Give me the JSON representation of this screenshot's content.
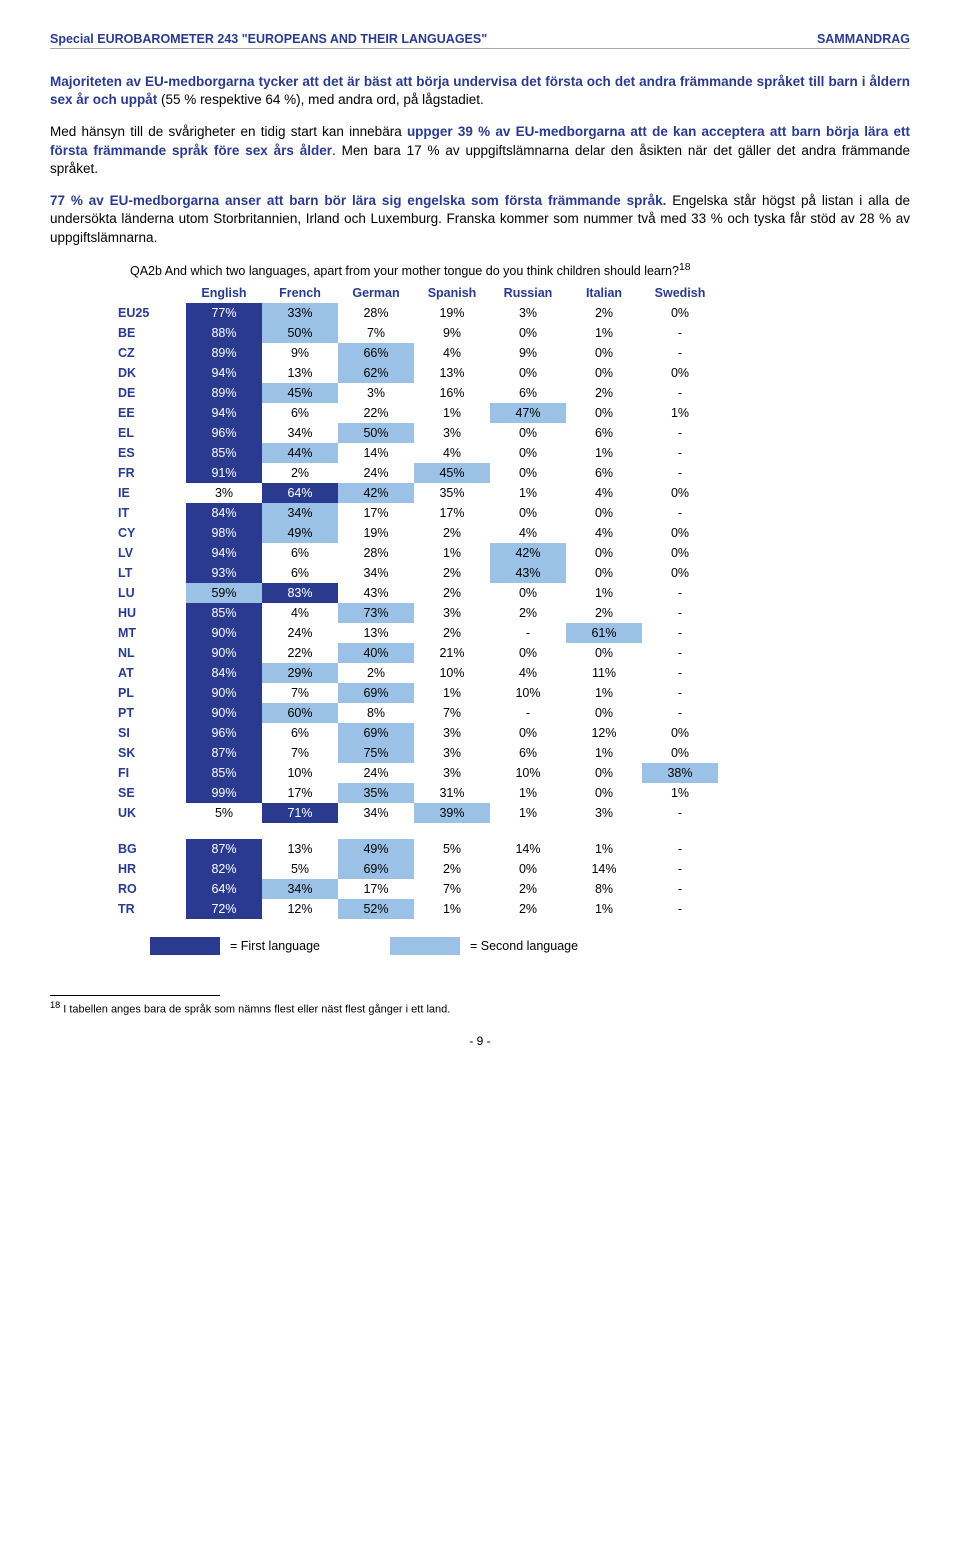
{
  "header": {
    "left": "Special EUROBAROMETER 243 \"EUROPEANS AND THEIR LANGUAGES\"",
    "right": "SAMMANDRAG"
  },
  "paragraphs": {
    "p1_pre": "Majoriteten av EU-medborgarna tycker att det är bäst att börja undervisa det första och det andra främmande språket till barn i åldern sex år och uppåt",
    "p1_post": " (55 % respektive 64 %), med andra ord, på lågstadiet.",
    "p2_pre": "Med hänsyn till de svårigheter en tidig start kan innebära ",
    "p2_bold": "uppger 39 % av EU-medborgarna att de kan acceptera att barn börja lära ett första främmande språk före sex års ålder",
    "p2_post": ". Men bara 17 % av uppgiftslämnarna delar den åsikten när det gäller det andra främmande språket.",
    "p3_bold": "77 % av EU-medborgarna anser att barn bör lära sig engelska som första främmande språk.",
    "p3_post": " Engelska står högst på listan i alla de undersökta länderna utom Storbritannien, Irland och Luxemburg. Franska kommer som nummer två med 33 % och tyska får stöd av 28 % av uppgiftslämnarna."
  },
  "table": {
    "intro": "QA2b And which two languages, apart from your mother tongue do you think children should learn?",
    "intro_sup": "18",
    "columns": [
      "English",
      "French",
      "German",
      "Spanish",
      "Russian",
      "Italian",
      "Swedish"
    ],
    "rows": [
      {
        "label": "EU25",
        "cells": [
          {
            "v": "77%",
            "h": 1
          },
          {
            "v": "33%",
            "h": 2
          },
          {
            "v": "28%",
            "h": 0
          },
          {
            "v": "19%",
            "h": 0
          },
          {
            "v": "3%",
            "h": 0
          },
          {
            "v": "2%",
            "h": 0
          },
          {
            "v": "0%",
            "h": 0
          }
        ]
      },
      {
        "label": "BE",
        "cells": [
          {
            "v": "88%",
            "h": 1
          },
          {
            "v": "50%",
            "h": 2
          },
          {
            "v": "7%",
            "h": 0
          },
          {
            "v": "9%",
            "h": 0
          },
          {
            "v": "0%",
            "h": 0
          },
          {
            "v": "1%",
            "h": 0
          },
          {
            "v": "-",
            "h": 0
          }
        ]
      },
      {
        "label": "CZ",
        "cells": [
          {
            "v": "89%",
            "h": 1
          },
          {
            "v": "9%",
            "h": 0
          },
          {
            "v": "66%",
            "h": 2
          },
          {
            "v": "4%",
            "h": 0
          },
          {
            "v": "9%",
            "h": 0
          },
          {
            "v": "0%",
            "h": 0
          },
          {
            "v": "-",
            "h": 0
          }
        ]
      },
      {
        "label": "DK",
        "cells": [
          {
            "v": "94%",
            "h": 1
          },
          {
            "v": "13%",
            "h": 0
          },
          {
            "v": "62%",
            "h": 2
          },
          {
            "v": "13%",
            "h": 0
          },
          {
            "v": "0%",
            "h": 0
          },
          {
            "v": "0%",
            "h": 0
          },
          {
            "v": "0%",
            "h": 0
          }
        ]
      },
      {
        "label": "DE",
        "cells": [
          {
            "v": "89%",
            "h": 1
          },
          {
            "v": "45%",
            "h": 2
          },
          {
            "v": "3%",
            "h": 0
          },
          {
            "v": "16%",
            "h": 0
          },
          {
            "v": "6%",
            "h": 0
          },
          {
            "v": "2%",
            "h": 0
          },
          {
            "v": "-",
            "h": 0
          }
        ]
      },
      {
        "label": "EE",
        "cells": [
          {
            "v": "94%",
            "h": 1
          },
          {
            "v": "6%",
            "h": 0
          },
          {
            "v": "22%",
            "h": 0
          },
          {
            "v": "1%",
            "h": 0
          },
          {
            "v": "47%",
            "h": 2
          },
          {
            "v": "0%",
            "h": 0
          },
          {
            "v": "1%",
            "h": 0
          }
        ]
      },
      {
        "label": "EL",
        "cells": [
          {
            "v": "96%",
            "h": 1
          },
          {
            "v": "34%",
            "h": 0
          },
          {
            "v": "50%",
            "h": 2
          },
          {
            "v": "3%",
            "h": 0
          },
          {
            "v": "0%",
            "h": 0
          },
          {
            "v": "6%",
            "h": 0
          },
          {
            "v": "-",
            "h": 0
          }
        ]
      },
      {
        "label": "ES",
        "cells": [
          {
            "v": "85%",
            "h": 1
          },
          {
            "v": "44%",
            "h": 2
          },
          {
            "v": "14%",
            "h": 0
          },
          {
            "v": "4%",
            "h": 0
          },
          {
            "v": "0%",
            "h": 0
          },
          {
            "v": "1%",
            "h": 0
          },
          {
            "v": "-",
            "h": 0
          }
        ]
      },
      {
        "label": "FR",
        "cells": [
          {
            "v": "91%",
            "h": 1
          },
          {
            "v": "2%",
            "h": 0
          },
          {
            "v": "24%",
            "h": 0
          },
          {
            "v": "45%",
            "h": 2
          },
          {
            "v": "0%",
            "h": 0
          },
          {
            "v": "6%",
            "h": 0
          },
          {
            "v": "-",
            "h": 0
          }
        ]
      },
      {
        "label": "IE",
        "cells": [
          {
            "v": "3%",
            "h": 0
          },
          {
            "v": "64%",
            "h": 1
          },
          {
            "v": "42%",
            "h": 2
          },
          {
            "v": "35%",
            "h": 0
          },
          {
            "v": "1%",
            "h": 0
          },
          {
            "v": "4%",
            "h": 0
          },
          {
            "v": "0%",
            "h": 0
          }
        ]
      },
      {
        "label": "IT",
        "cells": [
          {
            "v": "84%",
            "h": 1
          },
          {
            "v": "34%",
            "h": 2
          },
          {
            "v": "17%",
            "h": 0
          },
          {
            "v": "17%",
            "h": 0
          },
          {
            "v": "0%",
            "h": 0
          },
          {
            "v": "0%",
            "h": 0
          },
          {
            "v": "-",
            "h": 0
          }
        ]
      },
      {
        "label": "CY",
        "cells": [
          {
            "v": "98%",
            "h": 1
          },
          {
            "v": "49%",
            "h": 2
          },
          {
            "v": "19%",
            "h": 0
          },
          {
            "v": "2%",
            "h": 0
          },
          {
            "v": "4%",
            "h": 0
          },
          {
            "v": "4%",
            "h": 0
          },
          {
            "v": "0%",
            "h": 0
          }
        ]
      },
      {
        "label": "LV",
        "cells": [
          {
            "v": "94%",
            "h": 1
          },
          {
            "v": "6%",
            "h": 0
          },
          {
            "v": "28%",
            "h": 0
          },
          {
            "v": "1%",
            "h": 0
          },
          {
            "v": "42%",
            "h": 2
          },
          {
            "v": "0%",
            "h": 0
          },
          {
            "v": "0%",
            "h": 0
          }
        ]
      },
      {
        "label": "LT",
        "cells": [
          {
            "v": "93%",
            "h": 1
          },
          {
            "v": "6%",
            "h": 0
          },
          {
            "v": "34%",
            "h": 0
          },
          {
            "v": "2%",
            "h": 0
          },
          {
            "v": "43%",
            "h": 2
          },
          {
            "v": "0%",
            "h": 0
          },
          {
            "v": "0%",
            "h": 0
          }
        ]
      },
      {
        "label": "LU",
        "cells": [
          {
            "v": "59%",
            "h": 2
          },
          {
            "v": "83%",
            "h": 1
          },
          {
            "v": "43%",
            "h": 0
          },
          {
            "v": "2%",
            "h": 0
          },
          {
            "v": "0%",
            "h": 0
          },
          {
            "v": "1%",
            "h": 0
          },
          {
            "v": "-",
            "h": 0
          }
        ]
      },
      {
        "label": "HU",
        "cells": [
          {
            "v": "85%",
            "h": 1
          },
          {
            "v": "4%",
            "h": 0
          },
          {
            "v": "73%",
            "h": 2
          },
          {
            "v": "3%",
            "h": 0
          },
          {
            "v": "2%",
            "h": 0
          },
          {
            "v": "2%",
            "h": 0
          },
          {
            "v": "-",
            "h": 0
          }
        ]
      },
      {
        "label": "MT",
        "cells": [
          {
            "v": "90%",
            "h": 1
          },
          {
            "v": "24%",
            "h": 0
          },
          {
            "v": "13%",
            "h": 0
          },
          {
            "v": "2%",
            "h": 0
          },
          {
            "v": "-",
            "h": 0
          },
          {
            "v": "61%",
            "h": 2
          },
          {
            "v": "-",
            "h": 0
          }
        ]
      },
      {
        "label": "NL",
        "cells": [
          {
            "v": "90%",
            "h": 1
          },
          {
            "v": "22%",
            "h": 0
          },
          {
            "v": "40%",
            "h": 2
          },
          {
            "v": "21%",
            "h": 0
          },
          {
            "v": "0%",
            "h": 0
          },
          {
            "v": "0%",
            "h": 0
          },
          {
            "v": "-",
            "h": 0
          }
        ]
      },
      {
        "label": "AT",
        "cells": [
          {
            "v": "84%",
            "h": 1
          },
          {
            "v": "29%",
            "h": 2
          },
          {
            "v": "2%",
            "h": 0
          },
          {
            "v": "10%",
            "h": 0
          },
          {
            "v": "4%",
            "h": 0
          },
          {
            "v": "11%",
            "h": 0
          },
          {
            "v": "-",
            "h": 0
          }
        ]
      },
      {
        "label": "PL",
        "cells": [
          {
            "v": "90%",
            "h": 1
          },
          {
            "v": "7%",
            "h": 0
          },
          {
            "v": "69%",
            "h": 2
          },
          {
            "v": "1%",
            "h": 0
          },
          {
            "v": "10%",
            "h": 0
          },
          {
            "v": "1%",
            "h": 0
          },
          {
            "v": "-",
            "h": 0
          }
        ]
      },
      {
        "label": "PT",
        "cells": [
          {
            "v": "90%",
            "h": 1
          },
          {
            "v": "60%",
            "h": 2
          },
          {
            "v": "8%",
            "h": 0
          },
          {
            "v": "7%",
            "h": 0
          },
          {
            "v": "-",
            "h": 0
          },
          {
            "v": "0%",
            "h": 0
          },
          {
            "v": "-",
            "h": 0
          }
        ]
      },
      {
        "label": "SI",
        "cells": [
          {
            "v": "96%",
            "h": 1
          },
          {
            "v": "6%",
            "h": 0
          },
          {
            "v": "69%",
            "h": 2
          },
          {
            "v": "3%",
            "h": 0
          },
          {
            "v": "0%",
            "h": 0
          },
          {
            "v": "12%",
            "h": 0
          },
          {
            "v": "0%",
            "h": 0
          }
        ]
      },
      {
        "label": "SK",
        "cells": [
          {
            "v": "87%",
            "h": 1
          },
          {
            "v": "7%",
            "h": 0
          },
          {
            "v": "75%",
            "h": 2
          },
          {
            "v": "3%",
            "h": 0
          },
          {
            "v": "6%",
            "h": 0
          },
          {
            "v": "1%",
            "h": 0
          },
          {
            "v": "0%",
            "h": 0
          }
        ]
      },
      {
        "label": "FI",
        "cells": [
          {
            "v": "85%",
            "h": 1
          },
          {
            "v": "10%",
            "h": 0
          },
          {
            "v": "24%",
            "h": 0
          },
          {
            "v": "3%",
            "h": 0
          },
          {
            "v": "10%",
            "h": 0
          },
          {
            "v": "0%",
            "h": 0
          },
          {
            "v": "38%",
            "h": 2
          }
        ]
      },
      {
        "label": "SE",
        "cells": [
          {
            "v": "99%",
            "h": 1
          },
          {
            "v": "17%",
            "h": 0
          },
          {
            "v": "35%",
            "h": 2
          },
          {
            "v": "31%",
            "h": 0
          },
          {
            "v": "1%",
            "h": 0
          },
          {
            "v": "0%",
            "h": 0
          },
          {
            "v": "1%",
            "h": 0
          }
        ]
      },
      {
        "label": "UK",
        "cells": [
          {
            "v": "5%",
            "h": 0
          },
          {
            "v": "71%",
            "h": 1
          },
          {
            "v": "34%",
            "h": 0
          },
          {
            "v": "39%",
            "h": 2
          },
          {
            "v": "1%",
            "h": 0
          },
          {
            "v": "3%",
            "h": 0
          },
          {
            "v": "-",
            "h": 0
          }
        ]
      }
    ],
    "rows2": [
      {
        "label": "BG",
        "cells": [
          {
            "v": "87%",
            "h": 1
          },
          {
            "v": "13%",
            "h": 0
          },
          {
            "v": "49%",
            "h": 2
          },
          {
            "v": "5%",
            "h": 0
          },
          {
            "v": "14%",
            "h": 0
          },
          {
            "v": "1%",
            "h": 0
          },
          {
            "v": "-",
            "h": 0
          }
        ]
      },
      {
        "label": "HR",
        "cells": [
          {
            "v": "82%",
            "h": 1
          },
          {
            "v": "5%",
            "h": 0
          },
          {
            "v": "69%",
            "h": 2
          },
          {
            "v": "2%",
            "h": 0
          },
          {
            "v": "0%",
            "h": 0
          },
          {
            "v": "14%",
            "h": 0
          },
          {
            "v": "-",
            "h": 0
          }
        ]
      },
      {
        "label": "RO",
        "cells": [
          {
            "v": "64%",
            "h": 1
          },
          {
            "v": "34%",
            "h": 2
          },
          {
            "v": "17%",
            "h": 0
          },
          {
            "v": "7%",
            "h": 0
          },
          {
            "v": "2%",
            "h": 0
          },
          {
            "v": "8%",
            "h": 0
          },
          {
            "v": "-",
            "h": 0
          }
        ]
      },
      {
        "label": "TR",
        "cells": [
          {
            "v": "72%",
            "h": 1
          },
          {
            "v": "12%",
            "h": 0
          },
          {
            "v": "52%",
            "h": 2
          },
          {
            "v": "1%",
            "h": 0
          },
          {
            "v": "2%",
            "h": 0
          },
          {
            "v": "1%",
            "h": 0
          },
          {
            "v": "-",
            "h": 0
          }
        ]
      }
    ],
    "legend_first": "= First language",
    "legend_second": "= Second language",
    "colors": {
      "first": "#2a3b8f",
      "second": "#9bc2e6"
    }
  },
  "footnote": {
    "sup": "18",
    "text": " I tabellen anges bara de språk som nämns flest eller näst flest gånger i ett land."
  },
  "page_number": "- 9 -"
}
